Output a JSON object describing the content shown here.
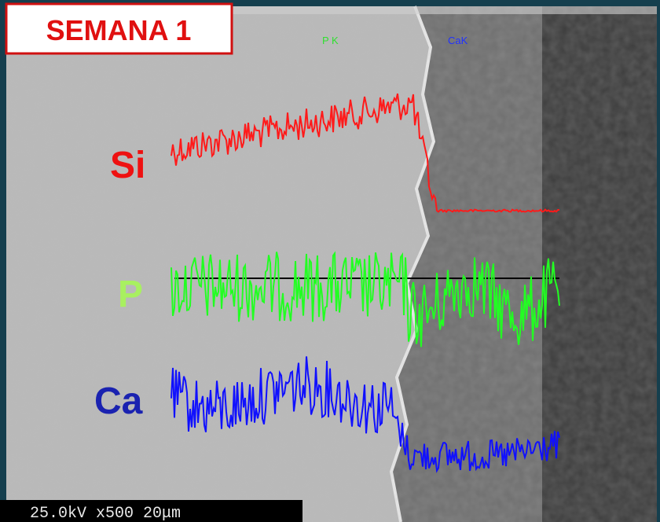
{
  "badge": "SEMANA 1",
  "element_labels": [
    "Si",
    "P",
    "Ca"
  ],
  "overlay_labels": [
    "P K",
    "CaK"
  ],
  "info_bar": "25.0kV x500 20μm"
}
